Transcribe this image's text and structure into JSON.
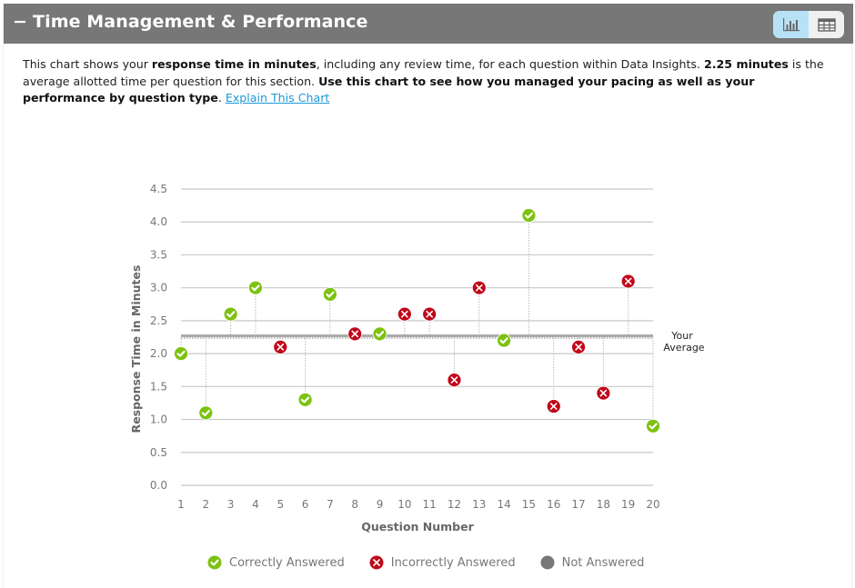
{
  "header": {
    "collapse_symbol": "−",
    "title": "Time Management & Performance",
    "view_toggle": [
      {
        "name": "chart-view",
        "icon": "bar-chart-icon",
        "active": true
      },
      {
        "name": "table-view",
        "icon": "table-icon",
        "active": false
      }
    ]
  },
  "description": {
    "p1": "This chart shows your ",
    "b1": "response time in minutes",
    "p2": ", including any review time, for each question within Data Insights. ",
    "b2": "2.25 minutes",
    "p3": " is the average allotted time per question for this section. ",
    "b3": "Use this chart to see how you managed your pacing as well as your performance by question type",
    "p4": ". ",
    "link": "Explain This Chart"
  },
  "colors": {
    "correct": "#7cc20f",
    "incorrect": "#c0081a",
    "not_answered": "#777777",
    "header_bg": "#777777",
    "toggle_active": "#b7e2f6",
    "link": "#1a9ad6"
  },
  "chart_data": {
    "type": "scatter",
    "title": "",
    "xlabel": "Question Number",
    "ylabel": "Response Time in Minutes",
    "x": [
      1,
      2,
      3,
      4,
      5,
      6,
      7,
      8,
      9,
      10,
      11,
      12,
      13,
      14,
      15,
      16,
      17,
      18,
      19,
      20
    ],
    "x_tick_labels": [
      "1",
      "2",
      "3",
      "4",
      "5",
      "6",
      "7",
      "8",
      "9",
      "10",
      "11",
      "12",
      "13",
      "14",
      "15",
      "16",
      "17",
      "18",
      "19",
      "20"
    ],
    "y_tick_labels": [
      "0.0",
      "0.5",
      "1.0",
      "1.5",
      "2.0",
      "2.5",
      "3.0",
      "3.5",
      "4.0",
      "4.5"
    ],
    "ylim": [
      0,
      4.5
    ],
    "xlim": [
      1,
      20
    ],
    "grid": true,
    "reference_line": {
      "value": 2.25,
      "label_line1": "Your",
      "label_line2": "Average"
    },
    "series": [
      {
        "name": "Response Time",
        "values": [
          2.0,
          1.1,
          2.6,
          3.0,
          2.1,
          1.3,
          2.9,
          2.3,
          2.3,
          2.6,
          2.6,
          1.6,
          3.0,
          2.2,
          4.1,
          1.2,
          2.1,
          1.4,
          3.1,
          0.9
        ],
        "status": [
          "correct",
          "correct",
          "correct",
          "correct",
          "incorrect",
          "correct",
          "correct",
          "incorrect",
          "correct",
          "incorrect",
          "incorrect",
          "incorrect",
          "incorrect",
          "correct",
          "correct",
          "incorrect",
          "incorrect",
          "incorrect",
          "incorrect",
          "correct"
        ]
      }
    ],
    "legend": {
      "position": "bottom",
      "entries": [
        {
          "key": "correct",
          "label": "Correctly Answered"
        },
        {
          "key": "incorrect",
          "label": "Incorrectly Answered"
        },
        {
          "key": "not_answered",
          "label": "Not Answered"
        }
      ]
    }
  }
}
